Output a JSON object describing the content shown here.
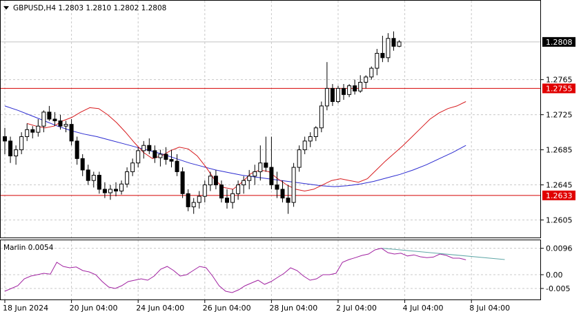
{
  "header": {
    "title": "GBPUSD,H4  1.2803  1.2810  1.2802  1.2808"
  },
  "indicator": {
    "title": "Marlin 0.0054"
  },
  "colors": {
    "bull_candle": "#ffffff",
    "bear_candle": "#000000",
    "red_ma": "#d7191c",
    "blue_ma": "#2a2ad0",
    "marlin": "#a020a0",
    "trendline": "#5fa7a7",
    "level_line": "#d40000",
    "price_label_bg": "#000000",
    "level_label_bg": "#e00000"
  },
  "chart_data": [
    {
      "type": "candlestick",
      "symbol": "GBPUSD",
      "timeframe": "H4",
      "ylim": [
        1.2585,
        1.2855
      ],
      "y_ticks": [
        "1.2605",
        "1.2645",
        "1.2685",
        "1.2725",
        "1.2765"
      ],
      "x_labels": [
        "18 Jun 2024",
        "20 Jun 04:00",
        "24 Jun 04:00",
        "26 Jun 04:00",
        "28 Jun 04:00",
        "2 Jul 04:00",
        "4 Jul 04:00",
        "8 Jul 04:00"
      ],
      "x_label_index": [
        0,
        12,
        24,
        36,
        48,
        60,
        72,
        84
      ],
      "current_price": {
        "value": 1.2808,
        "label": "1.2808"
      },
      "levels": [
        {
          "value": 1.2755,
          "label": "1.2755"
        },
        {
          "value": 1.2633,
          "label": "1.2633"
        }
      ],
      "candles": [
        [
          1.27,
          1.271,
          1.268,
          1.2695
        ],
        [
          1.2695,
          1.27,
          1.267,
          1.2678
        ],
        [
          1.2678,
          1.269,
          1.2668,
          1.2685
        ],
        [
          1.2685,
          1.2705,
          1.268,
          1.27
        ],
        [
          1.27,
          1.2715,
          1.2695,
          1.2708
        ],
        [
          1.2708,
          1.2712,
          1.2698,
          1.2705
        ],
        [
          1.2705,
          1.272,
          1.27,
          1.2712
        ],
        [
          1.2712,
          1.273,
          1.2705,
          1.2728
        ],
        [
          1.2728,
          1.2735,
          1.2718,
          1.272
        ],
        [
          1.272,
          1.2728,
          1.2712,
          1.2718
        ],
        [
          1.2718,
          1.2725,
          1.2708,
          1.2712
        ],
        [
          1.2712,
          1.2718,
          1.2705,
          1.2714
        ],
        [
          1.2714,
          1.272,
          1.269,
          1.2695
        ],
        [
          1.2695,
          1.27,
          1.2668,
          1.2675
        ],
        [
          1.2675,
          1.268,
          1.2655,
          1.2662
        ],
        [
          1.2662,
          1.2668,
          1.2645,
          1.265
        ],
        [
          1.265,
          1.266,
          1.2642,
          1.2656
        ],
        [
          1.2656,
          1.266,
          1.2635,
          1.264
        ],
        [
          1.264,
          1.2648,
          1.263,
          1.2636
        ],
        [
          1.2636,
          1.2645,
          1.2628,
          1.264
        ],
        [
          1.264,
          1.2648,
          1.2632,
          1.2638
        ],
        [
          1.2638,
          1.265,
          1.2634,
          1.2646
        ],
        [
          1.2646,
          1.2665,
          1.2642,
          1.266
        ],
        [
          1.266,
          1.2675,
          1.2655,
          1.267
        ],
        [
          1.267,
          1.2688,
          1.2665,
          1.2684
        ],
        [
          1.2684,
          1.2695,
          1.2675,
          1.269
        ],
        [
          1.269,
          1.2698,
          1.268,
          1.2684
        ],
        [
          1.2684,
          1.269,
          1.267,
          1.2676
        ],
        [
          1.2676,
          1.2685,
          1.2666,
          1.268
        ],
        [
          1.268,
          1.2688,
          1.2668,
          1.2674
        ],
        [
          1.2674,
          1.2685,
          1.2665,
          1.2672
        ],
        [
          1.2672,
          1.268,
          1.2655,
          1.266
        ],
        [
          1.266,
          1.2665,
          1.263,
          1.2635
        ],
        [
          1.2635,
          1.264,
          1.2615,
          1.262
        ],
        [
          1.262,
          1.263,
          1.2612,
          1.2625
        ],
        [
          1.2625,
          1.2638,
          1.2618,
          1.2632
        ],
        [
          1.2632,
          1.265,
          1.2625,
          1.2645
        ],
        [
          1.2645,
          1.266,
          1.2638,
          1.2655
        ],
        [
          1.2655,
          1.2662,
          1.264,
          1.2645
        ],
        [
          1.2645,
          1.265,
          1.2625,
          1.263
        ],
        [
          1.263,
          1.264,
          1.2618,
          1.2625
        ],
        [
          1.2625,
          1.264,
          1.2618,
          1.2635
        ],
        [
          1.2635,
          1.265,
          1.2628,
          1.2645
        ],
        [
          1.2645,
          1.2655,
          1.2635,
          1.265
        ],
        [
          1.265,
          1.2662,
          1.264,
          1.2655
        ],
        [
          1.2655,
          1.2668,
          1.2645,
          1.266
        ],
        [
          1.266,
          1.269,
          1.265,
          1.267
        ],
        [
          1.267,
          1.27,
          1.266,
          1.2665
        ],
        [
          1.2665,
          1.27,
          1.264,
          1.2645
        ],
        [
          1.2645,
          1.266,
          1.263,
          1.264
        ],
        [
          1.264,
          1.265,
          1.2625,
          1.263
        ],
        [
          1.263,
          1.2645,
          1.2612,
          1.2625
        ],
        [
          1.2625,
          1.267,
          1.262,
          1.2665
        ],
        [
          1.2665,
          1.269,
          1.266,
          1.2685
        ],
        [
          1.2685,
          1.27,
          1.268,
          1.2695
        ],
        [
          1.2695,
          1.2705,
          1.2688,
          1.27
        ],
        [
          1.27,
          1.2712,
          1.2695,
          1.271
        ],
        [
          1.271,
          1.274,
          1.2705,
          1.2735
        ],
        [
          1.2735,
          1.2785,
          1.273,
          1.2755
        ],
        [
          1.2755,
          1.276,
          1.2735,
          1.274
        ],
        [
          1.274,
          1.2758,
          1.2738,
          1.2755
        ],
        [
          1.2755,
          1.276,
          1.2742,
          1.2748
        ],
        [
          1.2748,
          1.276,
          1.2745,
          1.2758
        ],
        [
          1.2758,
          1.2765,
          1.2748,
          1.2752
        ],
        [
          1.2752,
          1.277,
          1.275,
          1.2762
        ],
        [
          1.2762,
          1.277,
          1.2755,
          1.2768
        ],
        [
          1.2768,
          1.278,
          1.2765,
          1.2778
        ],
        [
          1.2778,
          1.28,
          1.277,
          1.2795
        ],
        [
          1.2795,
          1.2815,
          1.2785,
          1.279
        ],
        [
          1.279,
          1.2818,
          1.2785,
          1.2812
        ],
        [
          1.2812,
          1.282,
          1.2798,
          1.2803
        ],
        [
          1.2803,
          1.281,
          1.2802,
          1.2808
        ]
      ],
      "red_ma": [
        1.2715,
        1.2712,
        1.271,
        1.2712,
        1.2718,
        1.2722,
        1.2728,
        1.2733,
        1.2732,
        1.2725,
        1.2716,
        1.2705,
        1.2693,
        1.2682,
        1.2675,
        1.2678,
        1.2684,
        1.2688,
        1.2686,
        1.2678,
        1.2665,
        1.265,
        1.2642,
        1.264,
        1.2648,
        1.2658,
        1.2662,
        1.266,
        1.2652,
        1.2645,
        1.264,
        1.2638,
        1.264,
        1.2645,
        1.265,
        1.2652,
        1.265,
        1.2648,
        1.2652,
        1.2662,
        1.2672,
        1.2681,
        1.269,
        1.27,
        1.271,
        1.272,
        1.2727,
        1.2732,
        1.2735,
        1.274
      ],
      "red_ma_start": 4,
      "blue_ma": [
        1.2735,
        1.273,
        1.2724,
        1.2718,
        1.2712,
        1.2707,
        1.2703,
        1.27,
        1.2696,
        1.2692,
        1.2688,
        1.2684,
        1.268,
        1.2675,
        1.267,
        1.2666,
        1.2662,
        1.2659,
        1.2656,
        1.2654,
        1.2652,
        1.265,
        1.2648,
        1.2646,
        1.2644,
        1.2643,
        1.2644,
        1.2646,
        1.2649,
        1.2653,
        1.2657,
        1.2662,
        1.2668,
        1.2675,
        1.2682,
        1.269
      ],
      "blue_ma_start": 0
    },
    {
      "type": "line",
      "name": "Marlin",
      "ylim": [
        -0.009,
        0.0125
      ],
      "y_ticks": [
        "0.0096",
        "0.00",
        "-0.005"
      ],
      "values": [
        -0.006,
        -0.005,
        -0.004,
        -0.0015,
        -0.0005,
        0.0,
        0.0005,
        0.0002,
        0.0045,
        0.003,
        0.0025,
        0.0028,
        0.0015,
        0.001,
        0.0,
        -0.0025,
        -0.0045,
        -0.005,
        -0.004,
        -0.0025,
        -0.002,
        -0.0015,
        -0.002,
        -0.0005,
        0.002,
        0.003,
        0.0015,
        -0.0005,
        0.0,
        0.0015,
        0.003,
        0.0025,
        -0.0005,
        -0.004,
        -0.006,
        -0.0065,
        -0.0055,
        -0.004,
        -0.003,
        -0.002,
        -0.0035,
        -0.0025,
        -0.001,
        0.0005,
        0.0025,
        0.0015,
        -0.0005,
        -0.002,
        -0.0015,
        0.0,
        0.0,
        0.0005,
        0.0045,
        0.0055,
        0.0062,
        0.007,
        0.0075,
        0.009,
        0.0096,
        0.008,
        0.0075,
        0.0078,
        0.0068,
        0.0072,
        0.0065,
        0.0062,
        0.0064,
        0.0075,
        0.007,
        0.006,
        0.006,
        0.0054
      ],
      "trendline": {
        "from_index": 84,
        "from_value": 0.0096,
        "to_index": 107,
        "to_value": 0.0055
      }
    }
  ]
}
